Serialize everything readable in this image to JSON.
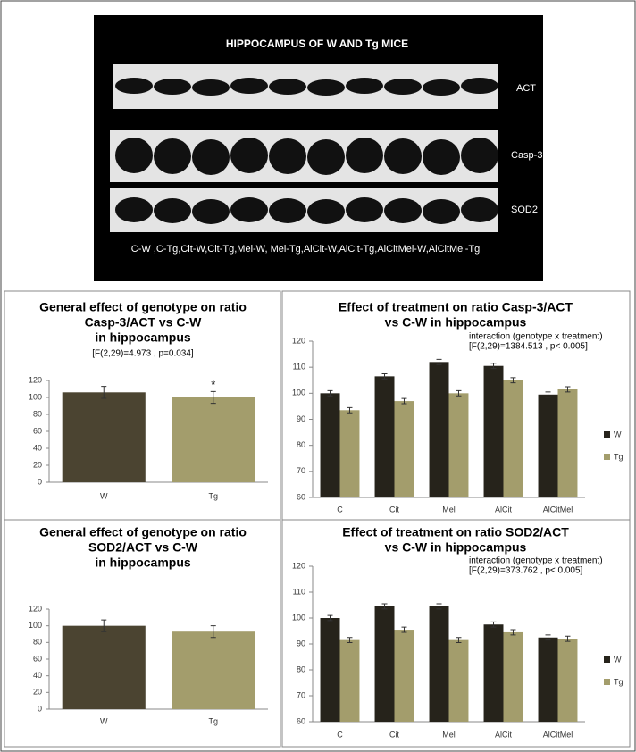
{
  "blot": {
    "title": "HIPPOCAMPUS OF  W AND Tg MICE",
    "bands": [
      "ACT",
      "Casp-3",
      "SOD2"
    ],
    "lanes": "C-W ,C-Tg,Cit-W,Cit-Tg,Mel-W, Mel-Tg,AlCit-W,AlCit-Tg,AlCitMel-W,AlCitMel-Tg"
  },
  "chart_data": [
    {
      "type": "bar",
      "title": [
        "General effect of genotype on ratio",
        "Casp-3/ACT  vs C-W",
        "in hippocampus"
      ],
      "subtitle": "[F(2,29)=4.973 , p=0.034]",
      "categories": [
        "W",
        "Tg"
      ],
      "values": [
        106,
        100
      ],
      "errors": [
        7,
        7
      ],
      "colors": [
        "#4b4431",
        "#a39d6c"
      ],
      "annotations": [
        {
          "text": "*",
          "category": 1
        }
      ],
      "ylim": [
        0,
        120
      ],
      "yticks": [
        0,
        20,
        40,
        60,
        80,
        100,
        120
      ],
      "grid": false
    },
    {
      "type": "bar",
      "title": [
        "Effect of treatment on ratio Casp-3/ACT",
        "vs C-W in hippocampus"
      ],
      "subtitle": [
        "interaction (genotype x treatment)",
        "[F(2,29)=1384.513 , p< 0.005]"
      ],
      "categories": [
        "C",
        "Cit",
        "Mel",
        "AlCit",
        "AlCitMel"
      ],
      "series": [
        {
          "name": "W",
          "color": "#26231b",
          "values": [
            100,
            106.5,
            112,
            110.5,
            99.5
          ],
          "errors": [
            1,
            1,
            1,
            1,
            1
          ]
        },
        {
          "name": "Tg",
          "color": "#a39d6c",
          "values": [
            93.5,
            97,
            100,
            105,
            101.5
          ],
          "errors": [
            1,
            1,
            1,
            1,
            1
          ]
        }
      ],
      "ylim": [
        60,
        120
      ],
      "yticks": [
        60,
        70,
        80,
        90,
        100,
        110,
        120
      ],
      "grid": false,
      "legend": "right"
    },
    {
      "type": "bar",
      "title": [
        "General effect of genotype on ratio",
        "SOD2/ACT  vs C-W",
        "in hippocampus"
      ],
      "categories": [
        "W",
        "Tg"
      ],
      "values": [
        100,
        93
      ],
      "errors": [
        7,
        7
      ],
      "colors": [
        "#4b4431",
        "#a39d6c"
      ],
      "ylim": [
        0,
        120
      ],
      "yticks": [
        0,
        20,
        40,
        60,
        80,
        100,
        120
      ],
      "grid": false
    },
    {
      "type": "bar",
      "title": [
        "Effect of treatment on ratio SOD2/ACT",
        "vs C-W in hippocampus"
      ],
      "subtitle": [
        "interaction (genotype x treatment)",
        "[F(2,29)=373.762 , p< 0.005]"
      ],
      "categories": [
        "C",
        "Cit",
        "Mel",
        "AlCit",
        "AlCitMel"
      ],
      "series": [
        {
          "name": "W",
          "color": "#26231b",
          "values": [
            100,
            104.5,
            104.5,
            97.5,
            92.5
          ],
          "errors": [
            1,
            1,
            1,
            1,
            1
          ]
        },
        {
          "name": "Tg",
          "color": "#a39d6c",
          "values": [
            91.5,
            95.5,
            91.5,
            94.5,
            92
          ],
          "errors": [
            1,
            1,
            1,
            1,
            1
          ]
        }
      ],
      "ylim": [
        60,
        120
      ],
      "yticks": [
        60,
        70,
        80,
        90,
        100,
        110,
        120
      ],
      "grid": false,
      "legend": "right"
    }
  ]
}
